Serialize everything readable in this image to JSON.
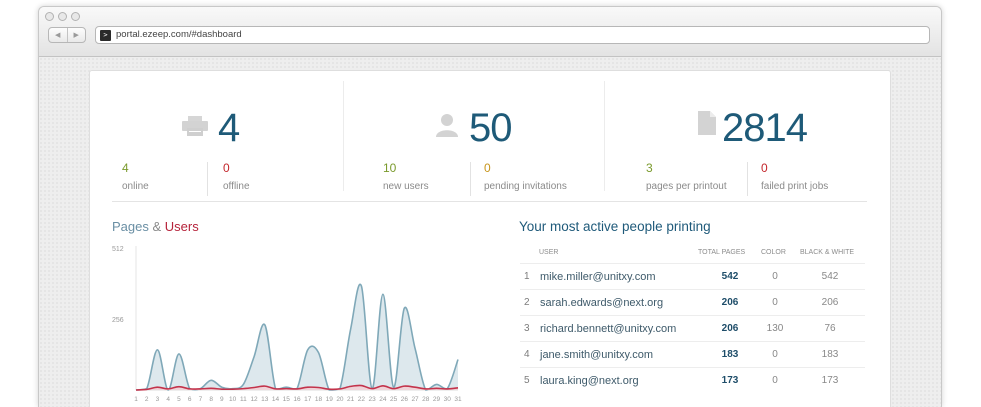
{
  "browser": {
    "url": "portal.ezeep.com/#dashboard"
  },
  "stats": [
    {
      "icon": "printer-icon",
      "value": "4",
      "items": [
        {
          "value": "4",
          "label": "online",
          "color": "#7a9a2c"
        },
        {
          "value": "0",
          "label": "offline",
          "color": "#c3262b"
        }
      ]
    },
    {
      "icon": "user-icon",
      "value": "50",
      "items": [
        {
          "value": "10",
          "label": "new users",
          "color": "#7a9a2c"
        },
        {
          "value": "0",
          "label": "pending invitations",
          "color": "#c7951c"
        }
      ]
    },
    {
      "icon": "document-icon",
      "value": "2814",
      "items": [
        {
          "value": "3",
          "label": "pages per printout",
          "color": "#7a9a2c"
        },
        {
          "value": "0",
          "label": "failed print jobs",
          "color": "#c3262b"
        }
      ]
    }
  ],
  "chart": {
    "title_pages": "Pages",
    "title_amp": "&",
    "title_users": "Users"
  },
  "chart_data": {
    "type": "area",
    "title": "Pages & Users",
    "yticks": [
      "512",
      "256"
    ],
    "ylim": [
      0,
      512
    ],
    "x": [
      "1",
      "2",
      "3",
      "4",
      "5",
      "6",
      "7",
      "8",
      "9",
      "10",
      "11",
      "12",
      "13",
      "14",
      "15",
      "16",
      "17",
      "18",
      "19",
      "20",
      "21",
      "22",
      "23",
      "24",
      "25",
      "26",
      "27",
      "28",
      "29",
      "30",
      "31"
    ],
    "series": [
      {
        "name": "Pages",
        "color": "#7fa8b8",
        "values": [
          0,
          5,
          145,
          0,
          130,
          5,
          5,
          35,
          10,
          5,
          20,
          120,
          235,
          5,
          10,
          5,
          145,
          135,
          0,
          5,
          220,
          375,
          5,
          345,
          10,
          295,
          150,
          0,
          20,
          5,
          110
        ]
      },
      {
        "name": "Users",
        "color": "#c3334b",
        "values": [
          0,
          2,
          10,
          4,
          12,
          4,
          4,
          6,
          3,
          3,
          5,
          9,
          14,
          4,
          5,
          4,
          10,
          9,
          3,
          4,
          13,
          16,
          5,
          15,
          5,
          14,
          10,
          4,
          6,
          4,
          8
        ]
      }
    ]
  },
  "table": {
    "title": "Your most active people printing",
    "headers": {
      "user": "USER",
      "total": "TOTAL PAGES",
      "color": "COLOR",
      "bw": "BLACK & WHITE"
    },
    "rows": [
      {
        "rank": "1",
        "email": "mike.miller@unitxy.com",
        "total": "542",
        "color": "0",
        "bw": "542"
      },
      {
        "rank": "2",
        "email": "sarah.edwards@next.org",
        "total": "206",
        "color": "0",
        "bw": "206"
      },
      {
        "rank": "3",
        "email": "richard.bennett@unitxy.com",
        "total": "206",
        "color": "130",
        "bw": "76"
      },
      {
        "rank": "4",
        "email": "jane.smith@unitxy.com",
        "total": "183",
        "color": "0",
        "bw": "183"
      },
      {
        "rank": "5",
        "email": "laura.king@next.org",
        "total": "173",
        "color": "0",
        "bw": "173"
      }
    ]
  }
}
